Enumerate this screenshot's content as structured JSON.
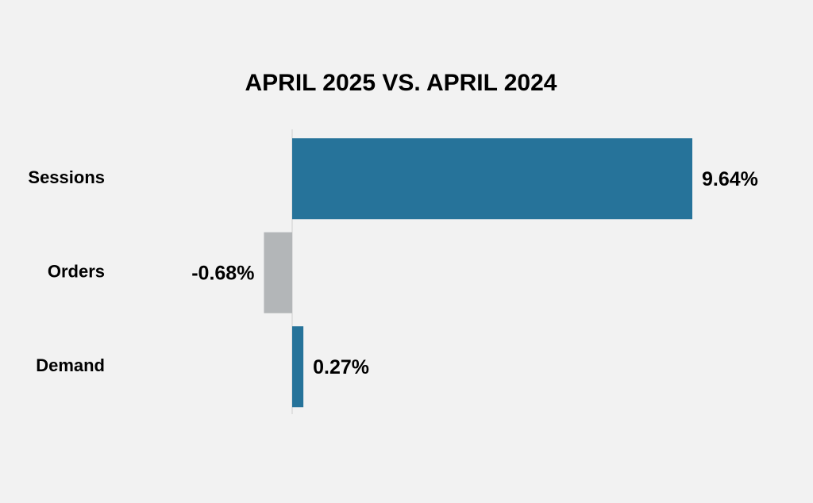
{
  "chart_data": {
    "type": "hbar",
    "title": "APRIL 2025 VS. APRIL 2024",
    "categories": [
      "Sessions",
      "Orders",
      "Demand"
    ],
    "values": [
      9.64,
      -0.68,
      0.27
    ],
    "value_labels": [
      "9.64%",
      "-0.68%",
      "0.27%"
    ],
    "colors": [
      "#26739a",
      "#b3b6b8",
      "#26739a"
    ]
  }
}
